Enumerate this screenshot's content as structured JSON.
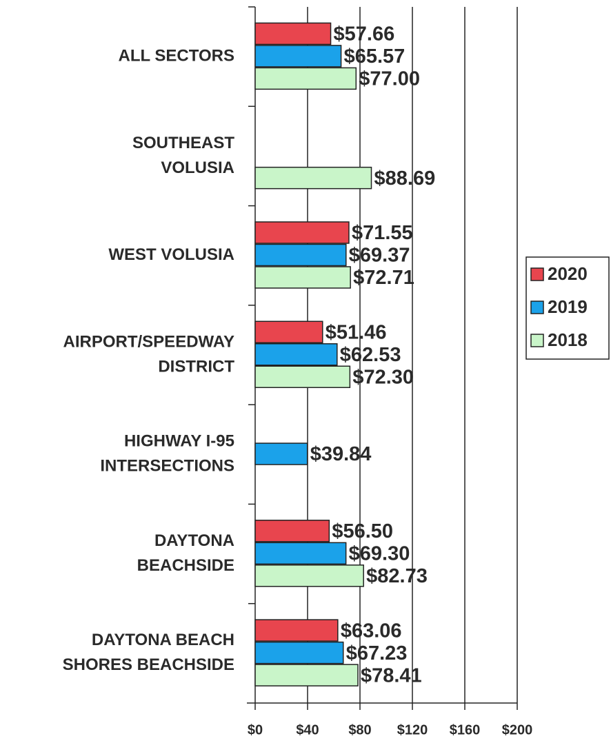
{
  "chart_data": {
    "type": "barh",
    "categories": [
      [
        "ALL SECTORS"
      ],
      [
        "SOUTHEAST",
        "VOLUSIA"
      ],
      [
        "WEST VOLUSIA"
      ],
      [
        "AIRPORT/SPEEDWAY",
        "DISTRICT"
      ],
      [
        "HIGHWAY I-95",
        "INTERSECTIONS"
      ],
      [
        "DAYTONA",
        "BEACHSIDE"
      ],
      [
        "DAYTONA BEACH",
        "SHORES BEACHSIDE"
      ]
    ],
    "series": [
      {
        "name": "2020",
        "color": "#e8454e",
        "values": [
          57.66,
          null,
          71.55,
          51.46,
          null,
          56.5,
          63.06
        ],
        "value_labels": [
          "$57.66",
          null,
          "$71.55",
          "$51.46",
          null,
          "$56.50",
          "$63.06"
        ]
      },
      {
        "name": "2019",
        "color": "#1ba2ea",
        "values": [
          65.57,
          null,
          69.37,
          62.53,
          39.84,
          69.3,
          67.23
        ],
        "value_labels": [
          "$65.57",
          null,
          "$69.37",
          "$62.53",
          "$39.84",
          "$69.30",
          "$67.23"
        ]
      },
      {
        "name": "2018",
        "color": "#c9f5c9",
        "values": [
          77.0,
          88.69,
          72.71,
          72.3,
          null,
          82.73,
          78.41
        ],
        "value_labels": [
          "$77.00",
          "$88.69",
          "$72.71",
          "$72.30",
          null,
          "$82.73",
          "$78.41"
        ]
      }
    ],
    "xlim": [
      0,
      200
    ],
    "xticks": [
      {
        "value": 0,
        "label": "$0"
      },
      {
        "value": 40,
        "label": "$40"
      },
      {
        "value": 80,
        "label": "$80"
      },
      {
        "value": 120,
        "label": "$120"
      },
      {
        "value": 160,
        "label": "$160"
      },
      {
        "value": 200,
        "label": "$200"
      }
    ],
    "grid": true,
    "legend": "right"
  }
}
